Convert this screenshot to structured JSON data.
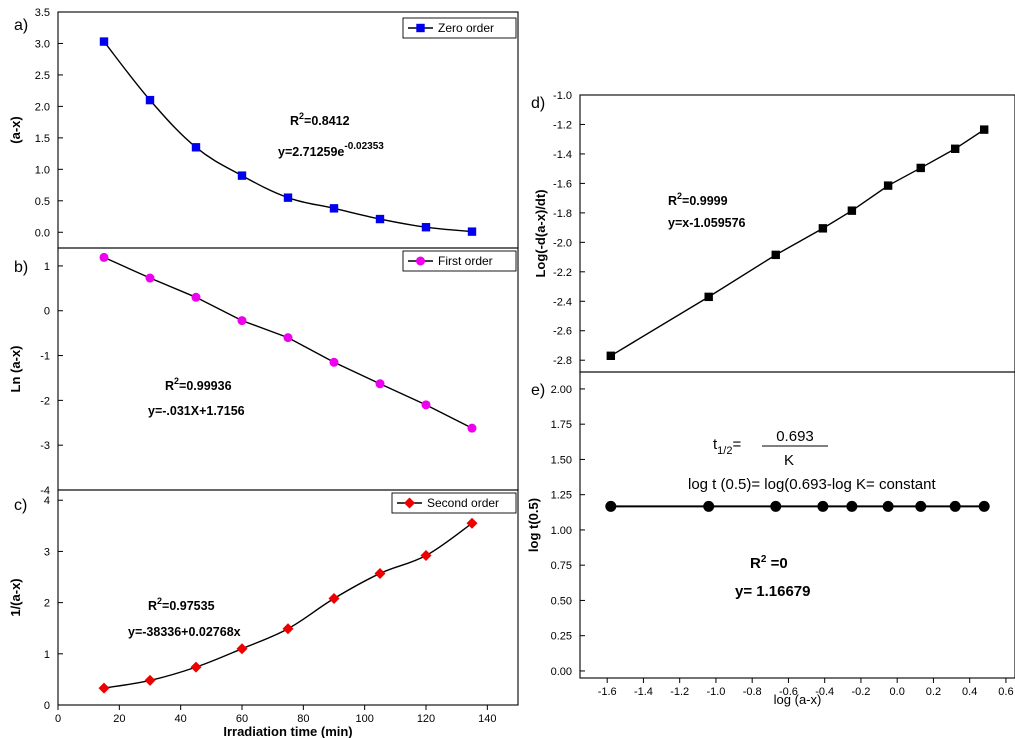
{
  "chart_data": [
    {
      "id": "a",
      "type": "line",
      "panel_label": "a)",
      "ylabel": "(a-x)",
      "xlim": [
        0,
        150
      ],
      "ylim": [
        -0.25,
        3.5
      ],
      "yticks": [
        0.0,
        0.5,
        1.0,
        1.5,
        2.0,
        2.5,
        3.0,
        3.5
      ],
      "ytick_labels": [
        "0.0",
        "0.5",
        "1.0",
        "1.5",
        "2.0",
        "2.5",
        "3.0",
        "3.5"
      ],
      "legend": "top-right",
      "series": [
        {
          "name": "Zero order",
          "color": "#0000ee",
          "marker": "square",
          "x": [
            15,
            30,
            45,
            60,
            75,
            90,
            105,
            120,
            135
          ],
          "y": [
            3.03,
            2.1,
            1.35,
            0.9,
            0.55,
            0.38,
            0.21,
            0.08,
            0.01
          ]
        }
      ],
      "annotations": [
        {
          "r2": "R",
          "r2_sup": "2",
          "r2_val": "=0.8412"
        },
        {
          "text": "y=2.71259e",
          "sup": "-0.02353"
        }
      ]
    },
    {
      "id": "b",
      "type": "line",
      "panel_label": "b)",
      "ylabel": "Ln (a-x)",
      "xlim": [
        0,
        150
      ],
      "ylim": [
        -4,
        1.4
      ],
      "yticks": [
        -4,
        -3,
        -2,
        -1,
        0,
        1
      ],
      "ytick_labels": [
        "-4",
        "-3",
        "-2",
        "-1",
        "0",
        "1"
      ],
      "legend": "top-right",
      "series": [
        {
          "name": "First order",
          "color": "#ee00ee",
          "marker": "circle",
          "x": [
            15,
            30,
            45,
            60,
            75,
            90,
            105,
            120,
            135
          ],
          "y": [
            1.19,
            0.73,
            0.3,
            -0.22,
            -0.6,
            -1.15,
            -1.63,
            -2.1,
            -2.62
          ]
        }
      ],
      "annotations": [
        {
          "r2": "R",
          "r2_sup": "2",
          "r2_val": "=0.99936"
        },
        {
          "text": "y=-.031X+1.7156"
        }
      ]
    },
    {
      "id": "c",
      "type": "line",
      "panel_label": "c)",
      "ylabel": "1/(a-x)",
      "xlabel": "Irradiation time (min)",
      "xlim": [
        0,
        150
      ],
      "ylim": [
        0,
        4.2
      ],
      "xticks": [
        0,
        20,
        40,
        60,
        80,
        100,
        120,
        140
      ],
      "xtick_labels": [
        "0",
        "20",
        "40",
        "60",
        "80",
        "100",
        "120",
        "140"
      ],
      "yticks": [
        0,
        1,
        2,
        3,
        4
      ],
      "ytick_labels": [
        "0",
        "1",
        "2",
        "3",
        "4"
      ],
      "legend": "top-right",
      "series": [
        {
          "name": "Second order",
          "color": "#ee0000",
          "marker": "diamond",
          "x": [
            15,
            30,
            45,
            60,
            75,
            90,
            105,
            120,
            135
          ],
          "y": [
            0.33,
            0.48,
            0.74,
            1.1,
            1.49,
            2.08,
            2.57,
            2.92,
            3.55
          ]
        }
      ],
      "annotations": [
        {
          "r2": "R",
          "r2_sup": "2",
          "r2_val": "=0.97535"
        },
        {
          "text": "y=-38336+0.02768x"
        }
      ]
    },
    {
      "id": "d",
      "type": "line",
      "panel_label": "d)",
      "ylabel": "Log(-d(a-x)/dt)",
      "xlim": [
        -1.75,
        0.65
      ],
      "ylim": [
        -2.88,
        -1.0
      ],
      "yticks": [
        -2.8,
        -2.6,
        -2.4,
        -2.2,
        -2.0,
        -1.8,
        -1.6,
        -1.4,
        -1.2,
        -1.0
      ],
      "ytick_labels": [
        "-2.8",
        "-2.6",
        "-2.4",
        "-2.2",
        "-2.0",
        "-1.8",
        "-1.6",
        "-1.4",
        "-1.2",
        "-1.0"
      ],
      "series": [
        {
          "color": "#000000",
          "marker": "square",
          "x": [
            -1.58,
            -1.04,
            -0.67,
            -0.41,
            -0.25,
            -0.05,
            0.13,
            0.32,
            0.48
          ],
          "y": [
            -2.77,
            -2.37,
            -2.085,
            -1.905,
            -1.785,
            -1.615,
            -1.495,
            -1.365,
            -1.235
          ]
        }
      ],
      "annotations": [
        {
          "r2": "R",
          "r2_sup": "2",
          "r2_val": "=0.9999"
        },
        {
          "text": "y=x-1.059576"
        }
      ]
    },
    {
      "id": "e",
      "type": "line",
      "panel_label": "e)",
      "ylabel": "log t(0.5)",
      "xlabel": "log (a-x)",
      "xlim": [
        -1.75,
        0.65
      ],
      "ylim": [
        -0.05,
        2.12
      ],
      "xticks": [
        -1.6,
        -1.4,
        -1.2,
        -1.0,
        -0.8,
        -0.6,
        -0.4,
        -0.2,
        0.0,
        0.2,
        0.4,
        0.6
      ],
      "xtick_labels": [
        "-1.6",
        "-1.4",
        "-1.2",
        "-1.0",
        "-0.8",
        "-0.6",
        "-0.4",
        "-0.2",
        "0.0",
        "0.2",
        "0.4",
        "0.6"
      ],
      "yticks": [
        0.0,
        0.25,
        0.5,
        0.75,
        1.0,
        1.25,
        1.5,
        1.75,
        2.0
      ],
      "ytick_labels": [
        "0.00",
        "0.25",
        "0.50",
        "0.75",
        "1.00",
        "1.25",
        "1.50",
        "1.75",
        "2.00"
      ],
      "series": [
        {
          "color": "#000000",
          "marker": "circle",
          "x": [
            -1.58,
            -1.04,
            -0.67,
            -0.41,
            -0.25,
            -0.05,
            0.13,
            0.32,
            0.48
          ],
          "y": [
            1.16679,
            1.16679,
            1.16679,
            1.16679,
            1.16679,
            1.16679,
            1.16679,
            1.16679,
            1.16679
          ]
        }
      ],
      "formula": {
        "lhs": "t",
        "lhs_sub": "1/2",
        "eq": "=",
        "numerator": "0.693",
        "denominator": "K",
        "line2": "log t (0.5)= log(0.693-log K= constant"
      },
      "annotations": [
        {
          "r2": "R",
          "r2_sup": "2",
          "r2_val": " =0"
        },
        {
          "text": "y= 1.16679"
        }
      ]
    }
  ]
}
